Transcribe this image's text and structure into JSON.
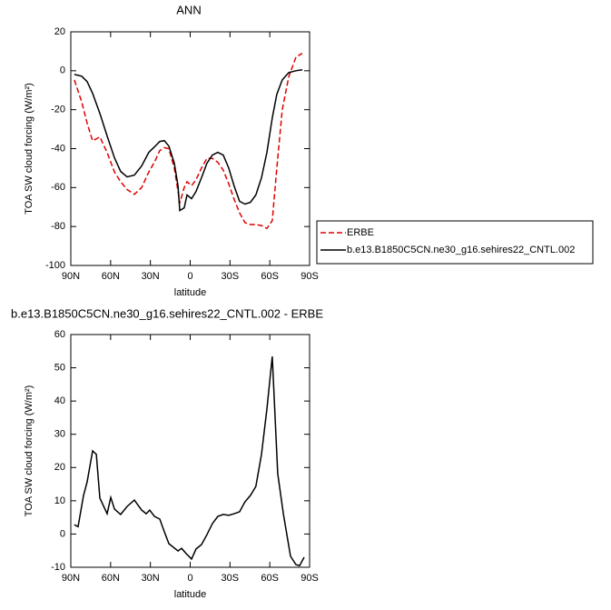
{
  "chart_data": [
    {
      "type": "line",
      "title": "ANN",
      "xlabel": "latitude",
      "ylabel": "TOA SW cloud forcing (W/m²)",
      "x": [
        87.3,
        81.8,
        77.7,
        73.6,
        68.1,
        62.6,
        57.1,
        52.4,
        47.6,
        42.1,
        36.6,
        31.2,
        27.0,
        22.9,
        19.5,
        16.1,
        12.0,
        9.2,
        7.9,
        4.5,
        2.4,
        -1.0,
        -4.4,
        -8.5,
        -12.6,
        -16.7,
        -20.8,
        -24.9,
        -29.0,
        -33.1,
        -37.2,
        -41.3,
        -45.4,
        -49.5,
        -53.7,
        -57.8,
        -61.9,
        -65.3,
        -69.4,
        -74.3,
        -79.7,
        -84.5
      ],
      "series": [
        {
          "name": "ERBE",
          "color": "#e00000",
          "dash": true,
          "values": [
            -4.7,
            -16,
            -27,
            -36,
            -34,
            -42,
            -52,
            -57,
            -61,
            -63.5,
            -60,
            -52,
            -47,
            -41,
            -39.5,
            -40,
            -50,
            -62,
            -68,
            -60,
            -57,
            -59,
            -56,
            -50,
            -45,
            -45,
            -47,
            -51,
            -58,
            -66,
            -73,
            -78,
            -79,
            -79,
            -79.5,
            -81,
            -77,
            -50,
            -20,
            -3,
            7,
            9
          ]
        },
        {
          "name": "b.e13.B1850C5CN.ne30_g16.sehires22_CNTL.002",
          "color": "#000000",
          "dash": false,
          "values": [
            -1.9,
            -2.8,
            -5.6,
            -11.6,
            -21.9,
            -33.5,
            -44.7,
            -51.7,
            -54.5,
            -53.6,
            -48.9,
            -41.9,
            -39.1,
            -36.3,
            -35.9,
            -38.7,
            -47.5,
            -59.2,
            -71.8,
            -70.4,
            -63.8,
            -65.7,
            -62,
            -55,
            -47.5,
            -43.3,
            -41.9,
            -43.3,
            -49.9,
            -59.2,
            -67.1,
            -68.5,
            -67.6,
            -63.8,
            -55,
            -41.9,
            -24.2,
            -12.1,
            -4.7,
            -0.9,
            0,
            0.5
          ]
        }
      ],
      "xlim": [
        90,
        -90
      ],
      "xticks": [
        {
          "value": 90,
          "label": "90N"
        },
        {
          "value": 60,
          "label": "60N"
        },
        {
          "value": 30,
          "label": "30N"
        },
        0,
        {
          "value": -30,
          "label": "30S"
        },
        {
          "value": -60,
          "label": "60S"
        },
        {
          "value": -90,
          "label": "90S"
        }
      ],
      "ylim": [
        -100,
        20
      ],
      "yticks": [
        -100,
        -80,
        -60,
        -40,
        -20,
        0,
        20
      ],
      "legend": "outside-right"
    },
    {
      "type": "line",
      "title": "b.e13.B1850C5CN.ne30_g16.sehires22_CNTL.002 - ERBE",
      "xlabel": "latitude",
      "ylabel": "TOA SW cloud forcing (W/m²)",
      "x": [
        87.3,
        84.5,
        80.4,
        77.7,
        73.6,
        70.8,
        68.1,
        62.6,
        59.9,
        57.1,
        52.4,
        47.6,
        42.1,
        36.6,
        33.2,
        30.5,
        27.0,
        22.9,
        19.5,
        16.1,
        9.2,
        6.5,
        3.0,
        -1.0,
        -4.4,
        -8.5,
        -12.6,
        -16.7,
        -20.8,
        -24.9,
        -29.0,
        -33.1,
        -37.2,
        -41.3,
        -45.4,
        -49.5,
        -53.7,
        -57.8,
        -61.9,
        -66.0,
        -70.2,
        -75.6,
        -79.7,
        -82.5,
        -85.9
      ],
      "series": [
        {
          "color": "#000000",
          "dash": false,
          "values": [
            2.8,
            2.2,
            11.6,
            15.7,
            25,
            24,
            10.8,
            6.1,
            11,
            7.5,
            5.9,
            8.3,
            10.2,
            7.2,
            6.1,
            7.2,
            5.3,
            4.5,
            0.7,
            -2.9,
            -5.1,
            -4.3,
            -5.9,
            -7.5,
            -4.5,
            -3.2,
            -0.2,
            3.1,
            5.3,
            5.9,
            5.6,
            6.1,
            6.7,
            9.7,
            11.6,
            14.3,
            23.9,
            37.6,
            53.4,
            18.2,
            6.1,
            -6.7,
            -9.2,
            -9.5,
            -7
          ]
        }
      ],
      "xlim": [
        90,
        -90
      ],
      "xticks": [
        {
          "value": 90,
          "label": "90N"
        },
        {
          "value": 60,
          "label": "60N"
        },
        {
          "value": 30,
          "label": "30N"
        },
        0,
        {
          "value": -30,
          "label": "30S"
        },
        {
          "value": -60,
          "label": "60S"
        },
        {
          "value": -90,
          "label": "90S"
        }
      ],
      "ylim": [
        -10,
        60
      ],
      "yticks": [
        -10,
        0,
        10,
        20,
        30,
        40,
        50,
        60
      ]
    }
  ]
}
